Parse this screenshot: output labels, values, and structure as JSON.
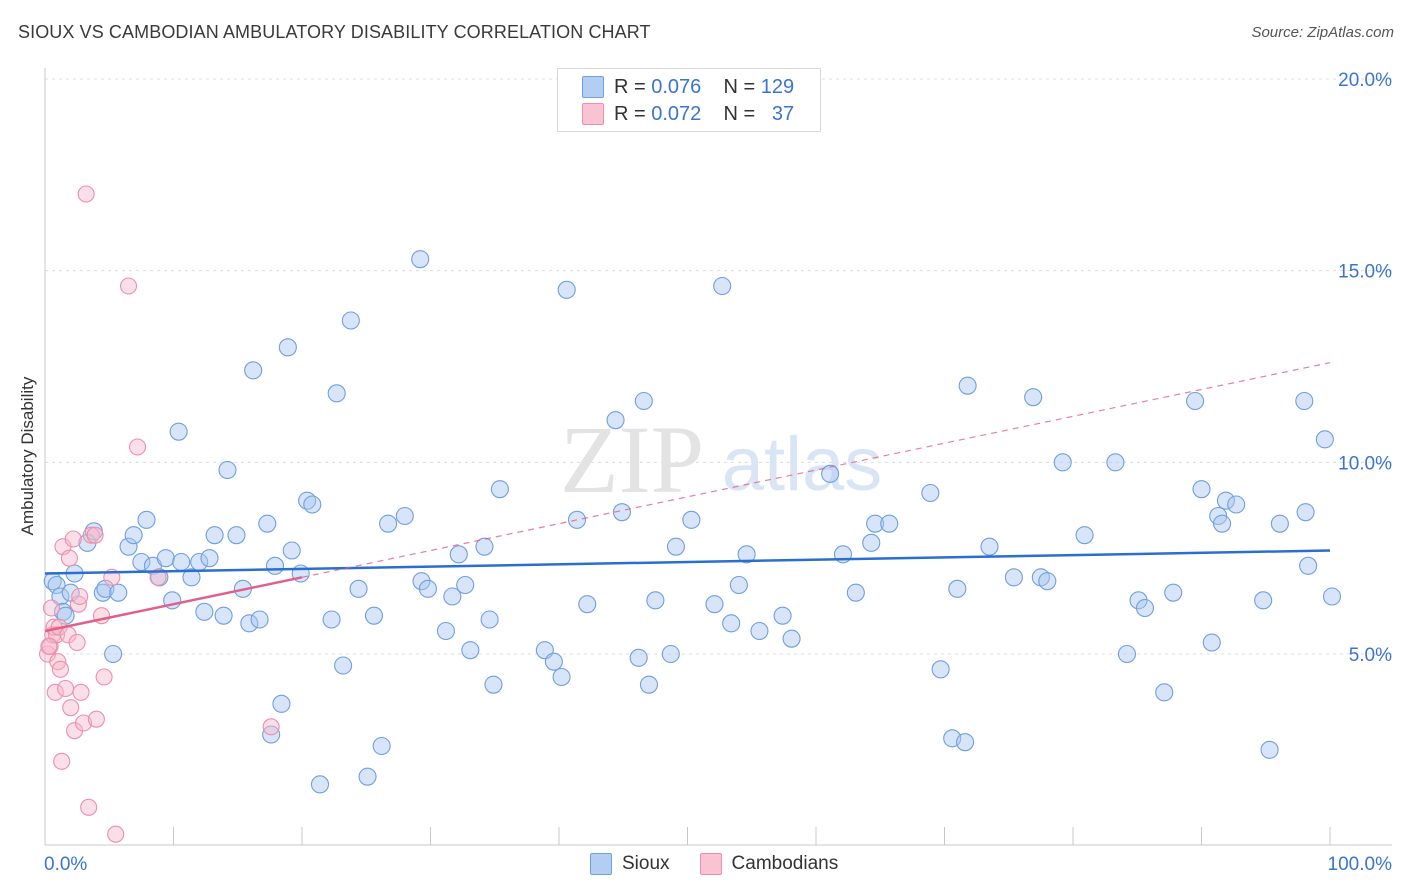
{
  "header": {
    "title": "SIOUX VS CAMBODIAN AMBULATORY DISABILITY CORRELATION CHART",
    "source": "Source: ZipAtlas.com"
  },
  "watermark": {
    "zip": "ZIP",
    "atlas": "atlas"
  },
  "legend": {
    "sioux": {
      "r_label": "R =",
      "r_value": "0.076",
      "n_label": "N =",
      "n_value": "129"
    },
    "cambodians": {
      "r_label": "R =",
      "r_value": "0.072",
      "n_label": "N =",
      "n_value": "37"
    }
  },
  "chart_data": {
    "type": "scatter",
    "title": "SIOUX VS CAMBODIAN AMBULATORY DISABILITY CORRELATION CHART",
    "xlabel": "",
    "ylabel": "Ambulatory Disability",
    "xlim": [
      0,
      100
    ],
    "ylim": [
      0,
      20.5
    ],
    "x_tick_labels": [
      "0.0%",
      "100.0%"
    ],
    "y_tick_labels": [
      "5.0%",
      "10.0%",
      "15.0%",
      "20.0%"
    ],
    "y_ticks": [
      5,
      10,
      15,
      20
    ],
    "grid": true,
    "legend_position": "top-center",
    "colors": {
      "sioux_fill": "#a9c6f0",
      "sioux_stroke": "#6f9fe0",
      "sioux_line": "#2a6fcf",
      "cambodians_fill": "#f7b8cb",
      "cambodians_stroke": "#ec8fab",
      "cambodians_line": "#e0608a",
      "tick_label": "#3a74d0"
    },
    "series": [
      {
        "name": "Sioux",
        "trend": {
          "x": [
            0,
            100
          ],
          "y": [
            7.1,
            7.7
          ]
        },
        "points": [
          [
            0.6,
            6.9
          ],
          [
            0.9,
            6.8
          ],
          [
            1.2,
            6.5
          ],
          [
            1.4,
            6.1
          ],
          [
            1.6,
            6.0
          ],
          [
            2.0,
            6.6
          ],
          [
            2.3,
            7.1
          ],
          [
            3.3,
            7.9
          ],
          [
            3.8,
            8.2
          ],
          [
            4.5,
            6.6
          ],
          [
            4.7,
            6.7
          ],
          [
            5.3,
            5.0
          ],
          [
            5.7,
            6.6
          ],
          [
            6.5,
            7.8
          ],
          [
            6.9,
            8.1
          ],
          [
            7.5,
            7.4
          ],
          [
            7.9,
            8.5
          ],
          [
            8.4,
            7.3
          ],
          [
            8.9,
            7.0
          ],
          [
            9.4,
            7.5
          ],
          [
            9.9,
            6.4
          ],
          [
            10.4,
            10.8
          ],
          [
            10.6,
            7.4
          ],
          [
            11.4,
            7.0
          ],
          [
            12.0,
            7.4
          ],
          [
            12.4,
            6.1
          ],
          [
            12.8,
            7.5
          ],
          [
            13.2,
            8.1
          ],
          [
            13.9,
            6.0
          ],
          [
            14.2,
            9.8
          ],
          [
            14.9,
            8.1
          ],
          [
            15.4,
            6.7
          ],
          [
            15.9,
            5.8
          ],
          [
            16.2,
            12.4
          ],
          [
            16.7,
            5.9
          ],
          [
            17.3,
            8.4
          ],
          [
            17.6,
            2.9
          ],
          [
            17.9,
            7.3
          ],
          [
            18.4,
            3.7
          ],
          [
            18.9,
            13.0
          ],
          [
            19.2,
            7.7
          ],
          [
            19.9,
            7.1
          ],
          [
            20.4,
            9.0
          ],
          [
            20.8,
            8.9
          ],
          [
            21.4,
            1.6
          ],
          [
            22.3,
            5.9
          ],
          [
            22.7,
            11.8
          ],
          [
            23.2,
            4.7
          ],
          [
            23.8,
            13.7
          ],
          [
            24.4,
            6.7
          ],
          [
            25.1,
            1.8
          ],
          [
            25.6,
            6.0
          ],
          [
            26.2,
            2.6
          ],
          [
            26.7,
            8.4
          ],
          [
            28.0,
            8.6
          ],
          [
            29.2,
            15.3
          ],
          [
            29.3,
            6.9
          ],
          [
            29.8,
            6.7
          ],
          [
            31.2,
            5.6
          ],
          [
            31.7,
            6.5
          ],
          [
            32.2,
            7.6
          ],
          [
            32.7,
            6.8
          ],
          [
            33.1,
            5.1
          ],
          [
            34.2,
            7.8
          ],
          [
            34.6,
            5.9
          ],
          [
            34.9,
            4.2
          ],
          [
            35.4,
            9.3
          ],
          [
            38.9,
            5.1
          ],
          [
            39.6,
            4.8
          ],
          [
            40.2,
            4.4
          ],
          [
            40.6,
            14.5
          ],
          [
            41.4,
            8.5
          ],
          [
            42.2,
            6.3
          ],
          [
            44.4,
            11.1
          ],
          [
            44.9,
            8.7
          ],
          [
            46.2,
            4.9
          ],
          [
            46.6,
            11.6
          ],
          [
            47.0,
            4.2
          ],
          [
            47.5,
            6.4
          ],
          [
            48.7,
            5.0
          ],
          [
            49.1,
            7.8
          ],
          [
            50.3,
            8.5
          ],
          [
            52.1,
            6.3
          ],
          [
            52.7,
            14.6
          ],
          [
            53.4,
            5.8
          ],
          [
            54.0,
            6.8
          ],
          [
            54.6,
            7.6
          ],
          [
            55.6,
            5.6
          ],
          [
            57.4,
            6.0
          ],
          [
            58.1,
            5.4
          ],
          [
            61.1,
            9.7
          ],
          [
            62.1,
            7.6
          ],
          [
            63.1,
            6.6
          ],
          [
            64.3,
            7.9
          ],
          [
            64.6,
            8.4
          ],
          [
            65.7,
            8.4
          ],
          [
            68.9,
            9.2
          ],
          [
            69.7,
            4.6
          ],
          [
            70.6,
            2.8
          ],
          [
            71.0,
            6.7
          ],
          [
            71.6,
            2.7
          ],
          [
            71.8,
            12.0
          ],
          [
            73.5,
            7.8
          ],
          [
            75.4,
            7.0
          ],
          [
            76.9,
            11.7
          ],
          [
            77.5,
            7.0
          ],
          [
            78.0,
            6.9
          ],
          [
            79.2,
            10.0
          ],
          [
            80.9,
            8.1
          ],
          [
            83.3,
            10.0
          ],
          [
            84.2,
            5.0
          ],
          [
            85.1,
            6.4
          ],
          [
            85.6,
            6.2
          ],
          [
            87.1,
            4.0
          ],
          [
            87.8,
            6.6
          ],
          [
            89.5,
            11.6
          ],
          [
            90.0,
            9.3
          ],
          [
            90.8,
            5.3
          ],
          [
            91.3,
            8.6
          ],
          [
            91.6,
            8.4
          ],
          [
            91.9,
            9.0
          ],
          [
            92.7,
            8.9
          ],
          [
            94.8,
            6.4
          ],
          [
            95.3,
            2.5
          ],
          [
            96.1,
            8.4
          ],
          [
            98.0,
            11.6
          ],
          [
            98.1,
            8.7
          ],
          [
            98.3,
            7.3
          ],
          [
            99.6,
            10.6
          ],
          [
            101.0,
            6.5
          ]
        ]
      },
      {
        "name": "Cambodians",
        "trend": {
          "x": [
            0,
            20
          ],
          "y": [
            5.6,
            7.0
          ]
        },
        "trend_dashed": {
          "x": [
            20,
            100
          ],
          "y": [
            7.0,
            12.6
          ]
        },
        "points": [
          [
            0.2,
            5.0
          ],
          [
            0.4,
            5.2
          ],
          [
            0.5,
            6.2
          ],
          [
            0.6,
            5.5
          ],
          [
            0.7,
            5.7
          ],
          [
            0.8,
            4.0
          ],
          [
            0.9,
            5.5
          ],
          [
            1.0,
            4.8
          ],
          [
            1.1,
            5.7
          ],
          [
            1.2,
            4.6
          ],
          [
            1.3,
            2.2
          ],
          [
            1.4,
            7.8
          ],
          [
            1.6,
            4.1
          ],
          [
            1.8,
            5.5
          ],
          [
            1.9,
            7.5
          ],
          [
            2.0,
            3.6
          ],
          [
            2.2,
            8.0
          ],
          [
            2.3,
            3.0
          ],
          [
            2.5,
            5.3
          ],
          [
            2.6,
            6.3
          ],
          [
            2.7,
            6.5
          ],
          [
            2.8,
            4.0
          ],
          [
            3.0,
            3.2
          ],
          [
            3.2,
            17.0
          ],
          [
            3.4,
            1.0
          ],
          [
            3.6,
            8.1
          ],
          [
            3.9,
            8.1
          ],
          [
            4.0,
            3.3
          ],
          [
            4.6,
            4.4
          ],
          [
            5.2,
            7.0
          ],
          [
            5.5,
            0.3
          ],
          [
            6.5,
            14.6
          ],
          [
            7.2,
            10.4
          ],
          [
            8.8,
            7.0
          ],
          [
            17.6,
            3.1
          ],
          [
            4.4,
            6.0
          ],
          [
            0.3,
            5.2
          ]
        ]
      }
    ]
  },
  "bottom_legend": {
    "sioux": "Sioux",
    "cambodians": "Cambodians"
  }
}
